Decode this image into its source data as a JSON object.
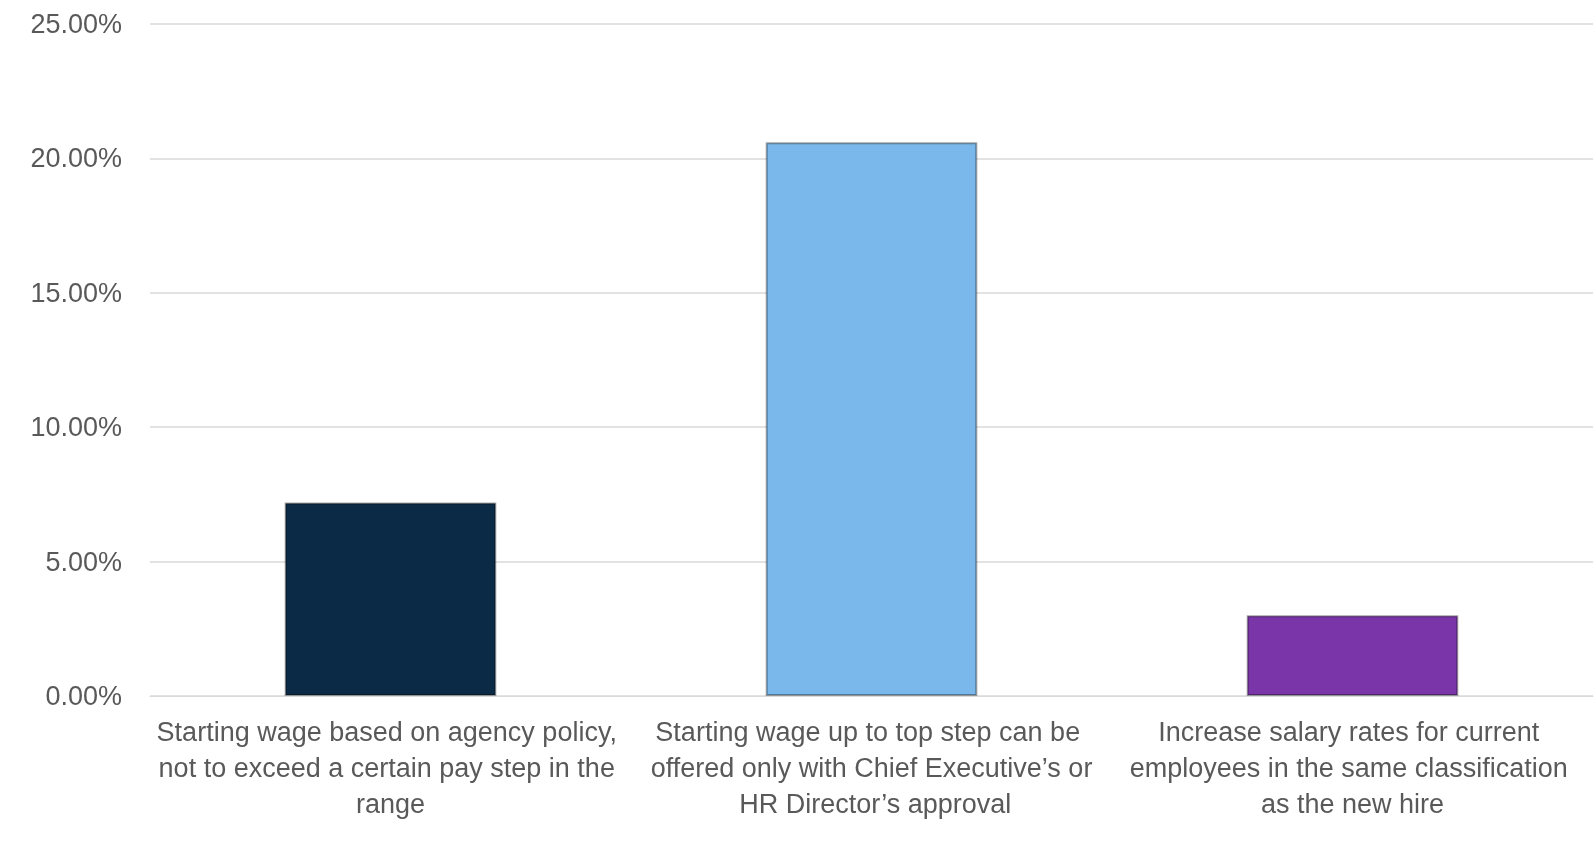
{
  "chart_data": {
    "type": "bar",
    "categories": [
      "Starting wage based on agency policy, not to exceed a certain pay step in the range",
      "Starting wage up to top step can be offered only with Chief Executive’s or HR Director’s approval",
      "Increase salary rates for current employees in the same classification as the new hire"
    ],
    "values": [
      7.2,
      20.6,
      3.0
    ],
    "colors": [
      "#0a2a45",
      "#7ab7ea",
      "#7a35a8"
    ],
    "ylim": [
      0,
      25
    ],
    "yticks": [
      {
        "value": 0,
        "label": "0.00%"
      },
      {
        "value": 5,
        "label": "5.00%"
      },
      {
        "value": 10,
        "label": "10.00%"
      },
      {
        "value": 15,
        "label": "15.00%"
      },
      {
        "value": 20,
        "label": "20.00%"
      },
      {
        "value": 25,
        "label": "25.00%"
      }
    ],
    "grid": "y"
  }
}
